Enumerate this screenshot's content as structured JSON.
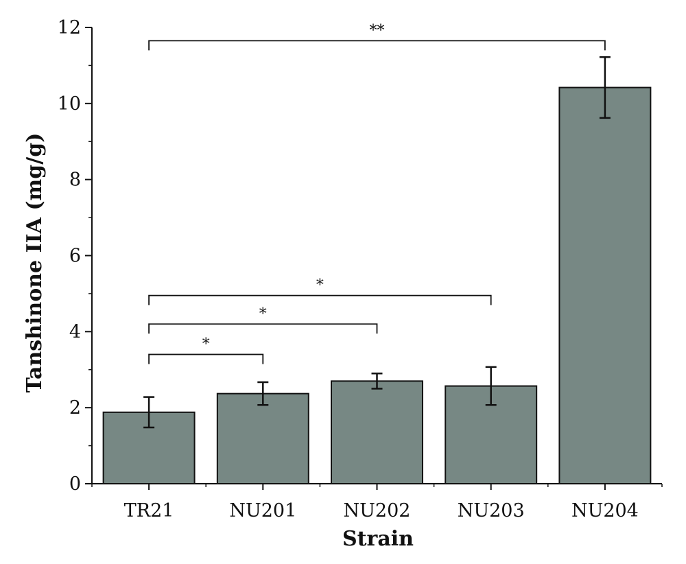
{
  "chart_data": {
    "type": "bar",
    "title": "",
    "xlabel": "Strain",
    "ylabel": "Tanshinone IIA (mg/g)",
    "categories": [
      "TR21",
      "NU201",
      "NU202",
      "NU203",
      "NU204"
    ],
    "values": [
      1.88,
      2.37,
      2.7,
      2.57,
      10.42
    ],
    "errors": [
      0.4,
      0.3,
      0.2,
      0.5,
      0.8
    ],
    "ylim": [
      0,
      12
    ],
    "yticks": [
      0,
      2,
      4,
      6,
      8,
      10,
      12
    ],
    "bar_color": "#778884",
    "grid": false,
    "significance": [
      {
        "from": "TR21",
        "to": "NU204",
        "label": "**",
        "y": 11.65
      },
      {
        "from": "TR21",
        "to": "NU203",
        "label": "*",
        "y": 4.95
      },
      {
        "from": "TR21",
        "to": "NU202",
        "label": "*",
        "y": 4.2
      },
      {
        "from": "TR21",
        "to": "NU201",
        "label": "*",
        "y": 3.4
      }
    ]
  }
}
